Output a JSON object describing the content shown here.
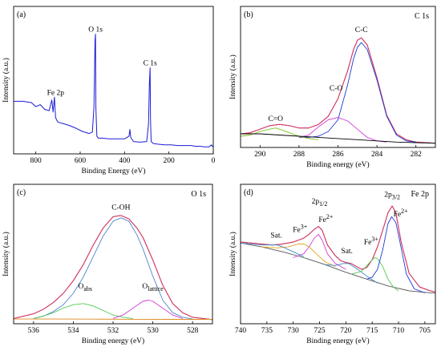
{
  "chart_data": [
    {
      "panel": "(a)",
      "type": "line",
      "xlabel": "Binding Energy (eV)",
      "ylabel": "Intensity (a.u.)",
      "xlim": [
        0,
        900
      ],
      "x_reversed": true,
      "xticks": [
        800,
        600,
        400,
        200,
        0
      ],
      "y_range": [
        0,
        1
      ],
      "y_units": "relative",
      "annotations": [
        {
          "text": "O 1s",
          "x": 531,
          "y": 0.87
        },
        {
          "text": "C 1s",
          "x": 285,
          "y": 0.62
        },
        {
          "text": "Fe 2p",
          "x": 711,
          "y": 0.4
        }
      ],
      "series": [
        {
          "color": "#1c1cd6",
          "x": [
            900,
            860,
            820,
            800,
            780,
            760,
            740,
            728,
            722,
            716,
            711,
            706,
            700,
            680,
            650,
            620,
            590,
            560,
            545,
            538,
            533,
            531,
            529,
            525,
            518,
            500,
            470,
            440,
            400,
            380,
            376,
            372,
            360,
            330,
            300,
            292,
            288,
            285,
            283,
            280,
            270,
            250,
            220,
            190,
            160,
            130,
            100,
            80,
            60,
            40,
            20,
            8,
            0
          ],
          "y": [
            0.37,
            0.37,
            0.36,
            0.33,
            0.345,
            0.31,
            0.3,
            0.38,
            0.29,
            0.4,
            0.25,
            0.23,
            0.215,
            0.205,
            0.19,
            0.17,
            0.145,
            0.13,
            0.14,
            0.33,
            0.82,
            0.87,
            0.32,
            0.11,
            0.095,
            0.095,
            0.09,
            0.09,
            0.09,
            0.11,
            0.16,
            0.1,
            0.07,
            0.065,
            0.07,
            0.2,
            0.5,
            0.62,
            0.24,
            0.07,
            0.055,
            0.05,
            0.045,
            0.045,
            0.04,
            0.04,
            0.04,
            0.035,
            0.035,
            0.03,
            0.03,
            0.045,
            0.03
          ]
        }
      ]
    },
    {
      "panel": "(b)",
      "panel_title": "C 1s",
      "type": "line",
      "xlabel": "Binding energy (eV)",
      "ylabel": "Intensity (a.u.)",
      "xlim": [
        281,
        291
      ],
      "x_reversed": true,
      "xticks": [
        290,
        288,
        286,
        284,
        282
      ],
      "y_range": [
        0,
        1
      ],
      "y_units": "relative",
      "annotations": [
        {
          "text": "C-C",
          "x": 284.8,
          "y": 0.93
        },
        {
          "text": "C-O",
          "x": 286.1,
          "y": 0.43
        },
        {
          "text": "C=O",
          "x": 289.2,
          "y": 0.17
        }
      ],
      "series": [
        {
          "name": "measured",
          "color": "#8a3b1f",
          "x": [
            291,
            290.5,
            290,
            289.5,
            289,
            288.5,
            288,
            287.5,
            287,
            286.5,
            286,
            285.5,
            285.2,
            285,
            284.8,
            284.5,
            284,
            283.5,
            283,
            282.5,
            282,
            281.5,
            281
          ],
          "y": [
            0.08,
            0.09,
            0.12,
            0.15,
            0.16,
            0.15,
            0.13,
            0.13,
            0.16,
            0.23,
            0.38,
            0.62,
            0.8,
            0.88,
            0.9,
            0.84,
            0.56,
            0.24,
            0.08,
            0.03,
            0.01,
            0.005,
            0.0
          ]
        },
        {
          "name": "envelope",
          "color": "#e0306a",
          "x": [
            291,
            290.5,
            290,
            289.5,
            289,
            288.5,
            288,
            287.5,
            287,
            286.5,
            286,
            285.5,
            285.2,
            285,
            284.8,
            284.5,
            284,
            283.5,
            283,
            282.5,
            282,
            281.5,
            281
          ],
          "y": [
            0.08,
            0.09,
            0.12,
            0.15,
            0.16,
            0.15,
            0.13,
            0.13,
            0.16,
            0.23,
            0.38,
            0.62,
            0.8,
            0.88,
            0.9,
            0.84,
            0.56,
            0.24,
            0.08,
            0.03,
            0.01,
            0.005,
            0.0
          ]
        },
        {
          "name": "C-C",
          "color": "#1f3ad6",
          "x": [
            288,
            287.5,
            287,
            286.5,
            286,
            285.5,
            285.2,
            285,
            284.8,
            284.5,
            284,
            283.5,
            283,
            282.5,
            282
          ],
          "y": [
            0.05,
            0.05,
            0.06,
            0.1,
            0.2,
            0.5,
            0.72,
            0.82,
            0.86,
            0.8,
            0.54,
            0.23,
            0.07,
            0.02,
            0.01
          ]
        },
        {
          "name": "C-O",
          "color": "#d23dd6",
          "x": [
            288,
            287.5,
            287,
            286.5,
            286,
            285.5,
            285,
            284.5,
            284,
            283.5
          ],
          "y": [
            0.05,
            0.07,
            0.14,
            0.2,
            0.22,
            0.19,
            0.12,
            0.05,
            0.02,
            0.01
          ]
        },
        {
          "name": "C=O",
          "color": "#7fc21e",
          "x": [
            291,
            290.5,
            290,
            289.5,
            289.2,
            289,
            288.5,
            288,
            287.5,
            287
          ],
          "y": [
            0.06,
            0.07,
            0.1,
            0.12,
            0.13,
            0.12,
            0.09,
            0.06,
            0.04,
            0.03
          ]
        },
        {
          "name": "background",
          "color": "#000000",
          "x": [
            291,
            290,
            289,
            288,
            287,
            286,
            285,
            284,
            283,
            282,
            281
          ],
          "y": [
            0.08,
            0.08,
            0.07,
            0.06,
            0.05,
            0.04,
            0.03,
            0.02,
            0.01,
            0.005,
            0.0
          ]
        }
      ]
    },
    {
      "panel": "(c)",
      "panel_title": "O 1s",
      "type": "line",
      "xlabel": "Binding energy (eV)",
      "ylabel": "Intensity (a.u.)",
      "xlim": [
        527,
        537
      ],
      "x_reversed": true,
      "xticks": [
        536,
        534,
        532,
        530,
        528
      ],
      "y_range": [
        0,
        1
      ],
      "y_units": "relative",
      "annotations": [
        {
          "text": "C-OH",
          "x": 531.6,
          "y": 0.94
        },
        {
          "text": "O",
          "sub": "abs",
          "x": 533.4,
          "y": 0.25
        },
        {
          "text": "O",
          "sub": "lattice",
          "x": 530.0,
          "y": 0.25
        }
      ],
      "series": [
        {
          "name": "measured",
          "color": "#8a3b1f",
          "x": [
            537,
            536.5,
            536,
            535.5,
            535,
            534.5,
            534,
            533.5,
            533,
            532.5,
            532,
            531.6,
            531.2,
            530.8,
            530.5,
            530,
            529.5,
            529,
            528.5,
            528,
            527.5,
            527
          ],
          "y": [
            0.01,
            0.03,
            0.05,
            0.09,
            0.15,
            0.23,
            0.34,
            0.48,
            0.65,
            0.8,
            0.9,
            0.91,
            0.88,
            0.8,
            0.72,
            0.52,
            0.3,
            0.14,
            0.06,
            0.02,
            0.01,
            0.0
          ]
        },
        {
          "name": "envelope",
          "color": "#e0306a",
          "x": [
            537,
            536.5,
            536,
            535.5,
            535,
            534.5,
            534,
            533.5,
            533,
            532.5,
            532,
            531.6,
            531.2,
            530.8,
            530.5,
            530,
            529.5,
            529,
            528.5,
            528,
            527.5,
            527
          ],
          "y": [
            0.01,
            0.03,
            0.05,
            0.09,
            0.15,
            0.23,
            0.34,
            0.48,
            0.65,
            0.8,
            0.9,
            0.91,
            0.88,
            0.8,
            0.72,
            0.52,
            0.3,
            0.14,
            0.06,
            0.02,
            0.01,
            0.0
          ]
        },
        {
          "name": "C-OH",
          "color": "#4f86c6",
          "x": [
            536,
            535.5,
            535,
            534.5,
            534,
            533.5,
            533,
            532.5,
            532,
            531.6,
            531.2,
            530.8,
            530.5,
            530,
            529.5,
            529,
            528.5,
            528
          ],
          "y": [
            0.01,
            0.03,
            0.07,
            0.13,
            0.23,
            0.37,
            0.55,
            0.73,
            0.86,
            0.89,
            0.86,
            0.74,
            0.62,
            0.38,
            0.17,
            0.06,
            0.02,
            0.005
          ]
        },
        {
          "name": "O_abs",
          "color": "#54c854",
          "x": [
            536,
            535.5,
            535,
            534.5,
            534,
            533.5,
            533,
            532.5,
            532,
            531.5,
            531
          ],
          "y": [
            0.01,
            0.03,
            0.06,
            0.1,
            0.13,
            0.14,
            0.12,
            0.08,
            0.04,
            0.02,
            0.01
          ]
        },
        {
          "name": "O_lattice",
          "color": "#d23dd6",
          "x": [
            532,
            531.5,
            531,
            530.5,
            530.2,
            530,
            529.5,
            529,
            528.5
          ],
          "y": [
            0.01,
            0.04,
            0.1,
            0.16,
            0.17,
            0.16,
            0.1,
            0.04,
            0.01
          ]
        },
        {
          "name": "background",
          "color": "#e08a1e",
          "x": [
            537,
            535,
            533,
            531,
            529,
            527
          ],
          "y": [
            0.005,
            0.005,
            0.004,
            0.003,
            0.002,
            0.002
          ]
        }
      ]
    },
    {
      "panel": "(d)",
      "panel_title": "Fe 2p",
      "type": "line",
      "xlabel": "Binding energy (eV)",
      "ylabel": "Intensity (a.u.)",
      "xlim": [
        703,
        740
      ],
      "x_reversed": true,
      "xticks": [
        740,
        735,
        730,
        725,
        720,
        715,
        710,
        705
      ],
      "y_range": [
        0,
        1
      ],
      "y_units": "relative",
      "annotations": [
        {
          "text": "2p",
          "sub": "1/2",
          "x": 725.0,
          "y": 0.95
        },
        {
          "text": "2p",
          "sub": "3/2",
          "x": 711.2,
          "y": 1.02
        },
        {
          "text": "Fe",
          "sup": "2+",
          "x": 723.8,
          "y": 0.76
        },
        {
          "text": "Fe",
          "sup": "3+",
          "x": 728.7,
          "y": 0.66
        },
        {
          "text": "Sat.",
          "x": 733.2,
          "y": 0.6
        },
        {
          "text": "Sat.",
          "x": 719.8,
          "y": 0.44
        },
        {
          "text": "Fe",
          "sup": "3+",
          "x": 715.2,
          "y": 0.53
        },
        {
          "text": "Fe",
          "sup": "2+",
          "x": 709.6,
          "y": 0.82
        }
      ],
      "series": [
        {
          "name": "measured",
          "color": "#8a3b1f",
          "x": [
            740,
            738,
            736,
            734,
            732,
            730,
            728,
            727,
            726,
            725.2,
            724.5,
            723.5,
            722,
            721,
            720,
            719,
            718,
            717,
            716,
            715,
            714,
            713,
            712,
            711.2,
            710.5,
            709.5,
            708,
            706,
            704,
            703
          ],
          "y": [
            0.58,
            0.57,
            0.56,
            0.55,
            0.56,
            0.58,
            0.62,
            0.66,
            0.71,
            0.74,
            0.7,
            0.55,
            0.44,
            0.39,
            0.37,
            0.36,
            0.33,
            0.3,
            0.32,
            0.4,
            0.53,
            0.7,
            0.88,
            0.95,
            0.88,
            0.58,
            0.26,
            0.12,
            0.08,
            0.07
          ]
        },
        {
          "name": "envelope",
          "color": "#e0306a",
          "x": [
            740,
            738,
            736,
            734,
            732,
            730,
            728,
            727,
            726,
            725.2,
            724.5,
            723.5,
            722,
            721,
            720,
            719,
            718,
            717,
            716,
            715,
            714,
            713,
            712,
            711.2,
            710.5,
            709.5,
            708,
            706,
            704,
            703
          ],
          "y": [
            0.58,
            0.57,
            0.56,
            0.55,
            0.56,
            0.58,
            0.62,
            0.66,
            0.71,
            0.74,
            0.7,
            0.55,
            0.44,
            0.39,
            0.37,
            0.36,
            0.33,
            0.3,
            0.32,
            0.4,
            0.53,
            0.7,
            0.88,
            0.95,
            0.88,
            0.58,
            0.26,
            0.12,
            0.08,
            0.07
          ]
        },
        {
          "name": "background",
          "color": "#555555",
          "x": [
            740,
            736,
            732,
            728,
            724,
            720,
            716,
            712,
            708,
            704,
            703
          ],
          "y": [
            0.57,
            0.53,
            0.48,
            0.42,
            0.35,
            0.27,
            0.2,
            0.13,
            0.08,
            0.06,
            0.06
          ]
        },
        {
          "name": "Fe2+ 2p1/2",
          "color": "#d23dd6",
          "x": [
            730,
            728,
            727,
            726,
            725.2,
            724.5,
            723.5,
            722,
            720
          ],
          "y": [
            0.42,
            0.46,
            0.53,
            0.62,
            0.66,
            0.6,
            0.46,
            0.36,
            0.3
          ]
        },
        {
          "name": "Fe3+ 2p1/2",
          "color": "#e0a21e",
          "x": [
            736,
            733,
            731,
            729,
            728,
            727,
            726,
            724,
            722
          ],
          "y": [
            0.53,
            0.52,
            0.53,
            0.56,
            0.56,
            0.53,
            0.48,
            0.38,
            0.33
          ]
        },
        {
          "name": "Sat. 2p1/2",
          "color": "#3f86c6",
          "x": [
            740,
            736,
            734,
            733,
            732,
            730,
            728
          ],
          "y": [
            0.57,
            0.55,
            0.55,
            0.55,
            0.53,
            0.48,
            0.43
          ]
        },
        {
          "name": "Sat. 2p3/2",
          "color": "#3f86c6",
          "x": [
            724,
            722,
            720.5,
            719.5,
            718,
            716,
            714
          ],
          "y": [
            0.35,
            0.34,
            0.36,
            0.36,
            0.31,
            0.23,
            0.16
          ]
        },
        {
          "name": "Fe3+ 2p3/2",
          "color": "#54c854",
          "x": [
            719,
            717,
            716,
            715,
            714.5,
            714,
            713,
            712,
            711,
            710
          ],
          "y": [
            0.25,
            0.28,
            0.34,
            0.4,
            0.42,
            0.41,
            0.33,
            0.2,
            0.12,
            0.08
          ]
        },
        {
          "name": "Fe2+ 2p3/2",
          "color": "#1f3ad6",
          "x": [
            716,
            715,
            714,
            713,
            712,
            711.3,
            710.5,
            709.5,
            708.5,
            707,
            705
          ],
          "y": [
            0.2,
            0.22,
            0.3,
            0.5,
            0.77,
            0.84,
            0.78,
            0.52,
            0.25,
            0.1,
            0.06
          ]
        }
      ]
    }
  ]
}
